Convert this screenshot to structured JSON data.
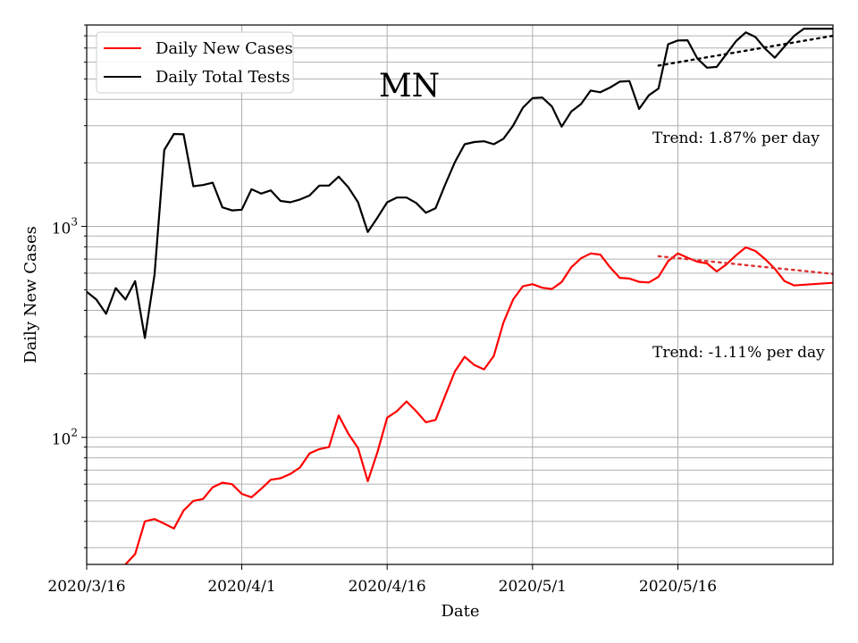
{
  "chart_data": {
    "type": "line",
    "title": "MN",
    "xlabel": "Date",
    "ylabel": "Daily New Cases",
    "yscale": "log",
    "ylim": [
      25,
      9000
    ],
    "xlim": [
      "2020-03-16",
      "2020-06-01"
    ],
    "x_ticks": [
      {
        "date": "2020-03-16",
        "label": "2020/3/16"
      },
      {
        "date": "2020-04-01",
        "label": "2020/4/1"
      },
      {
        "date": "2020-04-16",
        "label": "2020/4/16"
      },
      {
        "date": "2020-05-01",
        "label": "2020/5/1"
      },
      {
        "date": "2020-05-16",
        "label": "2020/5/16"
      }
    ],
    "y_ticks": [
      {
        "value": 100,
        "base": "10",
        "exp": "2"
      },
      {
        "value": 1000,
        "base": "10",
        "exp": "3"
      }
    ],
    "grid": true,
    "legend": {
      "position": "top-left"
    },
    "series": [
      {
        "name": "Daily New Cases",
        "color": "#ff0000",
        "x": [
          "2020-03-20",
          "2020-03-21",
          "2020-03-22",
          "2020-03-23",
          "2020-03-24",
          "2020-03-25",
          "2020-03-26",
          "2020-03-27",
          "2020-03-28",
          "2020-03-29",
          "2020-03-30",
          "2020-03-31",
          "2020-04-01",
          "2020-04-02",
          "2020-04-03",
          "2020-04-04",
          "2020-04-05",
          "2020-04-06",
          "2020-04-07",
          "2020-04-08",
          "2020-04-09",
          "2020-04-10",
          "2020-04-11",
          "2020-04-12",
          "2020-04-13",
          "2020-04-14",
          "2020-04-15",
          "2020-04-16",
          "2020-04-17",
          "2020-04-18",
          "2020-04-19",
          "2020-04-20",
          "2020-04-21",
          "2020-04-22",
          "2020-04-23",
          "2020-04-24",
          "2020-04-25",
          "2020-04-26",
          "2020-04-27",
          "2020-04-28",
          "2020-04-29",
          "2020-04-30",
          "2020-05-01",
          "2020-05-02",
          "2020-05-03",
          "2020-05-04",
          "2020-05-05",
          "2020-05-06",
          "2020-05-07",
          "2020-05-08",
          "2020-05-09",
          "2020-05-10",
          "2020-05-11",
          "2020-05-12",
          "2020-05-13",
          "2020-05-14",
          "2020-05-15",
          "2020-05-16",
          "2020-05-17",
          "2020-05-18",
          "2020-05-19",
          "2020-05-20",
          "2020-05-21",
          "2020-05-22",
          "2020-05-23",
          "2020-05-24",
          "2020-05-25",
          "2020-05-26",
          "2020-05-27",
          "2020-05-28",
          "2020-06-01"
        ],
        "values": [
          25,
          28,
          40,
          41,
          39,
          37,
          45,
          50,
          51,
          58,
          61,
          60,
          54,
          52,
          57,
          63,
          64,
          67,
          72,
          84,
          88,
          90,
          127,
          104,
          89,
          62,
          85,
          124,
          133,
          148,
          133,
          118,
          121,
          158,
          206,
          241,
          220,
          210,
          243,
          350,
          450,
          520,
          532,
          512,
          505,
          545,
          640,
          706,
          744,
          735,
          640,
          570,
          566,
          546,
          542,
          577,
          684,
          745,
          710,
          680,
          668,
          611,
          660,
          730,
          795,
          765,
          700,
          630,
          550,
          525,
          540
        ]
      },
      {
        "name": "Daily Total Tests",
        "color": "#000000",
        "x": [
          "2020-03-16",
          "2020-03-17",
          "2020-03-18",
          "2020-03-19",
          "2020-03-20",
          "2020-03-21",
          "2020-03-22",
          "2020-03-23",
          "2020-03-24",
          "2020-03-25",
          "2020-03-26",
          "2020-03-27",
          "2020-03-28",
          "2020-03-29",
          "2020-03-30",
          "2020-03-31",
          "2020-04-01",
          "2020-04-02",
          "2020-04-03",
          "2020-04-04",
          "2020-04-05",
          "2020-04-06",
          "2020-04-07",
          "2020-04-08",
          "2020-04-09",
          "2020-04-10",
          "2020-04-11",
          "2020-04-12",
          "2020-04-13",
          "2020-04-14",
          "2020-04-15",
          "2020-04-16",
          "2020-04-17",
          "2020-04-18",
          "2020-04-19",
          "2020-04-20",
          "2020-04-21",
          "2020-04-22",
          "2020-04-23",
          "2020-04-24",
          "2020-04-25",
          "2020-04-26",
          "2020-04-27",
          "2020-04-28",
          "2020-04-29",
          "2020-04-30",
          "2020-05-01",
          "2020-05-02",
          "2020-05-03",
          "2020-05-04",
          "2020-05-05",
          "2020-05-06",
          "2020-05-07",
          "2020-05-08",
          "2020-05-09",
          "2020-05-10",
          "2020-05-11",
          "2020-05-12",
          "2020-05-13",
          "2020-05-14",
          "2020-05-15",
          "2020-05-16",
          "2020-05-17",
          "2020-05-18",
          "2020-05-19",
          "2020-05-20",
          "2020-05-21",
          "2020-05-22",
          "2020-05-23",
          "2020-05-24",
          "2020-05-25",
          "2020-05-26",
          "2020-05-27",
          "2020-05-28",
          "2020-05-29",
          "2020-05-30",
          "2020-05-31",
          "2020-06-01"
        ],
        "values": [
          490,
          450,
          385,
          510,
          450,
          550,
          296,
          590,
          2300,
          2740,
          2730,
          1550,
          1570,
          1610,
          1230,
          1190,
          1200,
          1500,
          1430,
          1480,
          1320,
          1300,
          1340,
          1400,
          1560,
          1560,
          1720,
          1530,
          1300,
          940,
          1100,
          1300,
          1370,
          1370,
          1290,
          1160,
          1220,
          1580,
          2020,
          2450,
          2510,
          2530,
          2450,
          2600,
          3000,
          3650,
          4050,
          4080,
          3700,
          2970,
          3500,
          3800,
          4400,
          4320,
          4550,
          4850,
          4880,
          3600,
          4180,
          4500,
          7300,
          7600,
          7620,
          6250,
          5650,
          5700,
          6550,
          7550,
          8300,
          7900,
          6950,
          6300,
          7120,
          8000,
          8650,
          8650,
          8650,
          8650
        ]
      }
    ],
    "trends": [
      {
        "series": "Daily Total Tests",
        "color": "#000000",
        "x": [
          "2020-05-14",
          "2020-06-01"
        ],
        "values": [
          5780,
          8000
        ],
        "label": "Trend: 1.87% per day"
      },
      {
        "series": "Daily New Cases",
        "color": "#e03030",
        "x": [
          "2020-05-14",
          "2020-06-01"
        ],
        "values": [
          722,
          595
        ],
        "label": "Trend: -1.11% per day"
      }
    ]
  }
}
